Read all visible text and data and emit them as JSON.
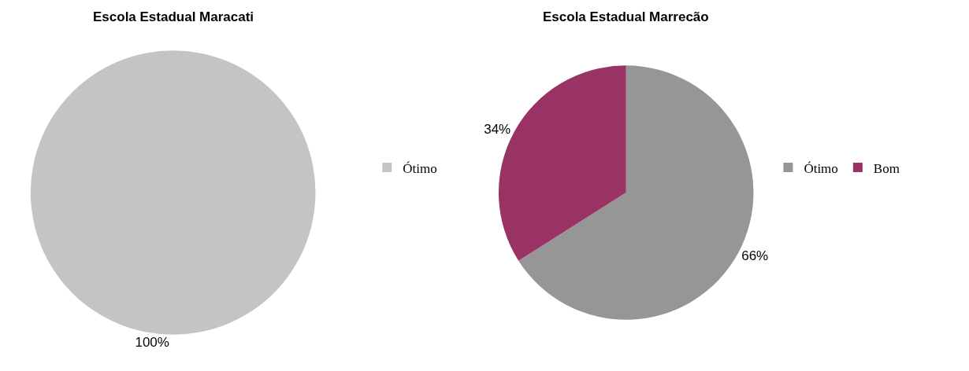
{
  "chart_data": [
    {
      "type": "pie",
      "title": "Escola Estadual Maracati",
      "categories": [
        "Ótimo"
      ],
      "values": [
        100
      ],
      "colors": [
        "#c4c4c4"
      ],
      "value_labels": [
        "100%"
      ],
      "legend": "right"
    },
    {
      "type": "pie",
      "title": "Escola Estadual Marrecão",
      "categories": [
        "Ótimo",
        "Bom"
      ],
      "values": [
        66,
        34
      ],
      "colors": [
        "#969696",
        "#993366"
      ],
      "value_labels": [
        "66%",
        "34%"
      ],
      "legend": "right"
    }
  ]
}
